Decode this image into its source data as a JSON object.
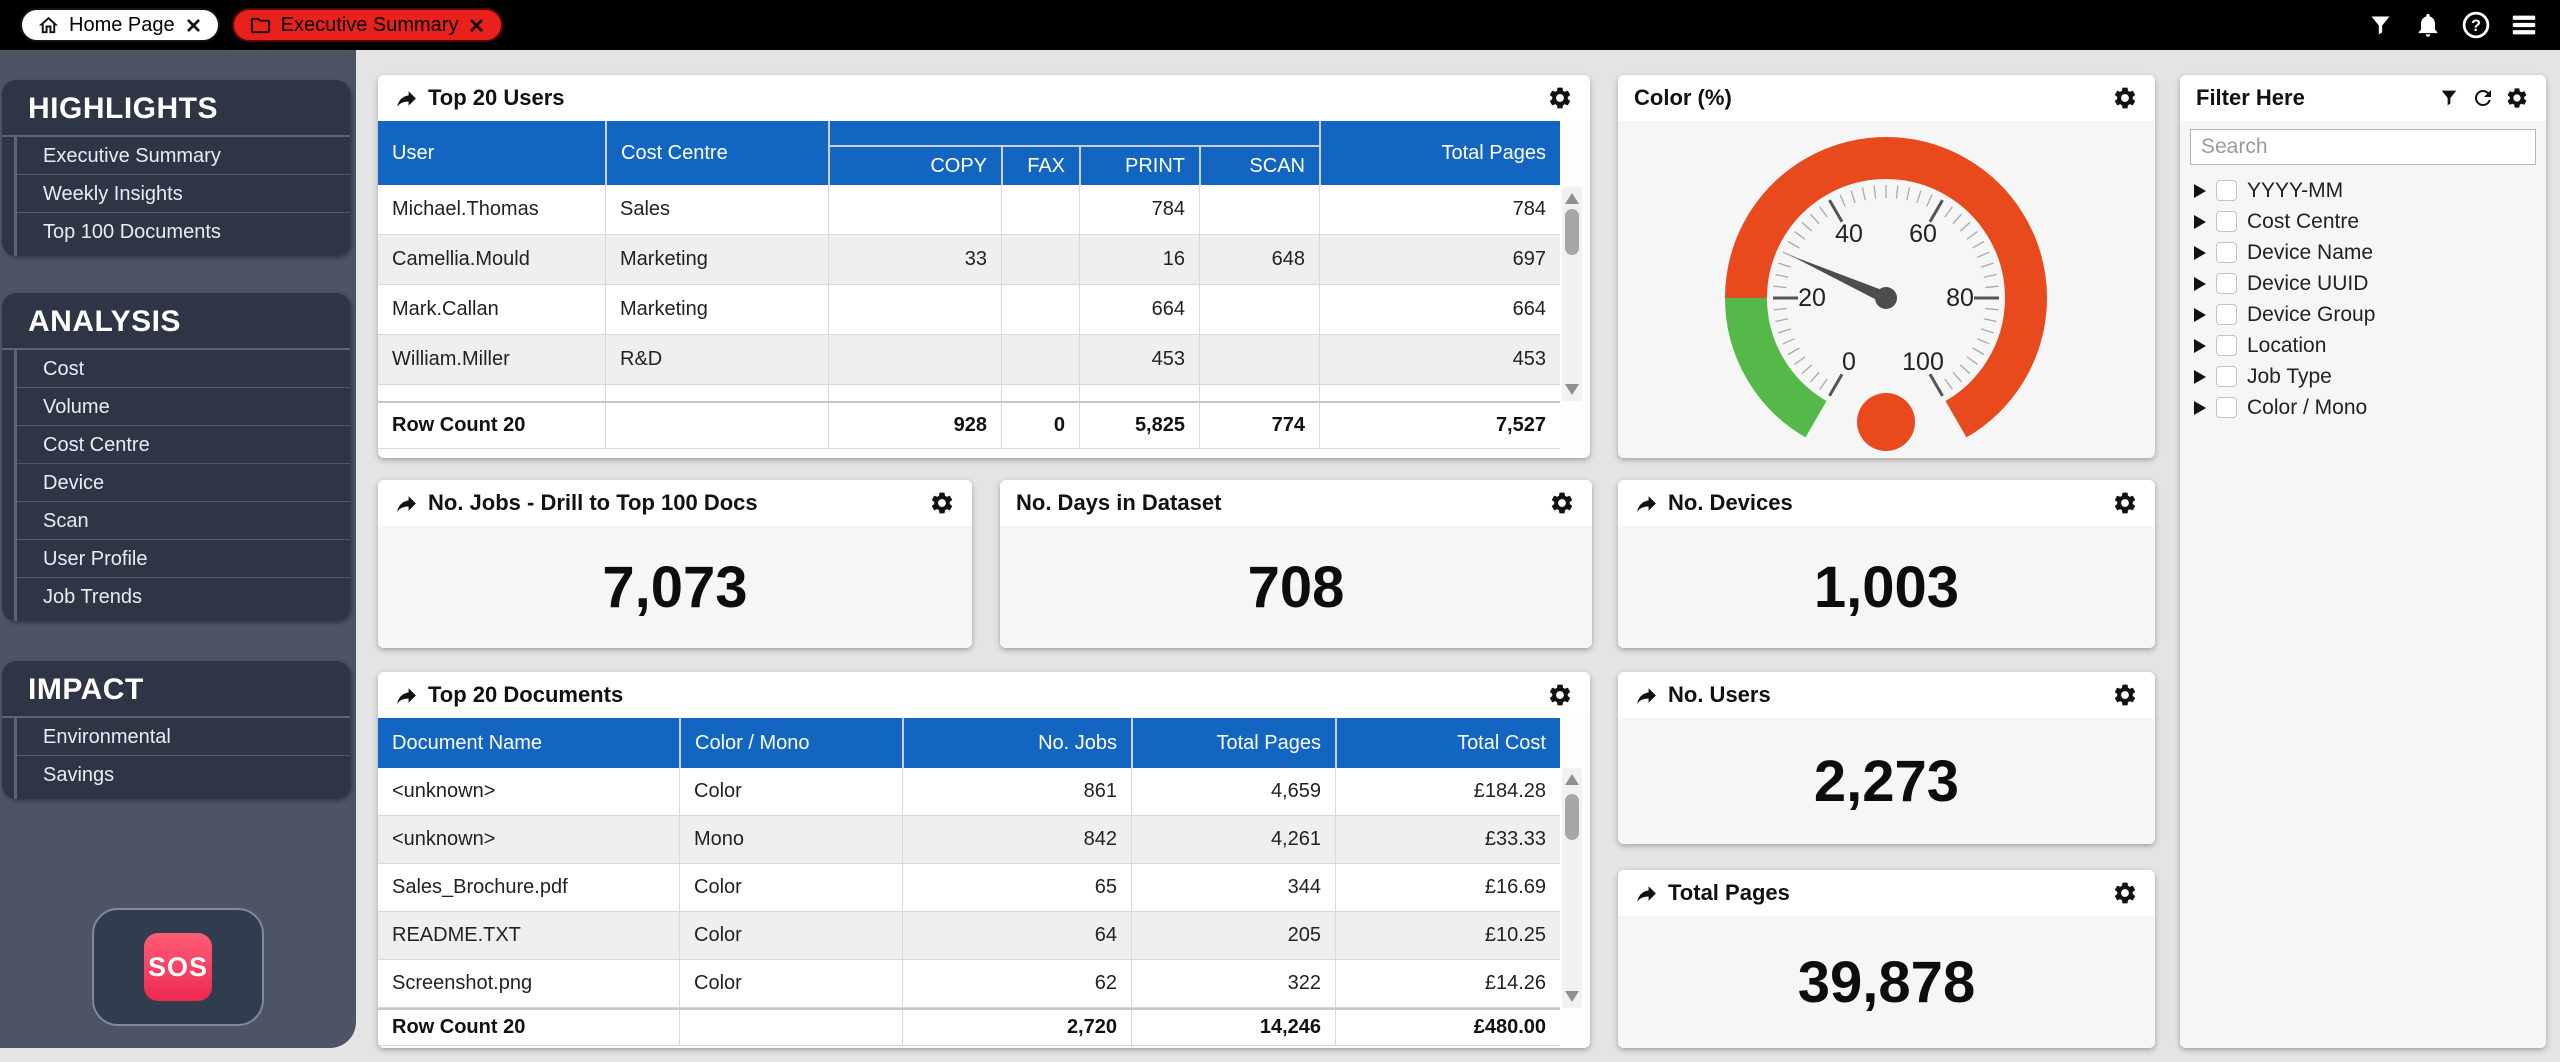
{
  "topbar": {
    "tabs": [
      {
        "label": "Home Page"
      },
      {
        "label": "Executive Summary"
      }
    ],
    "icons": [
      "filter",
      "notifications",
      "help",
      "menu"
    ]
  },
  "sidebar": {
    "sections": [
      {
        "title": "HIGHLIGHTS",
        "items": [
          "Executive Summary",
          "Weekly Insights",
          "Top 100 Documents"
        ]
      },
      {
        "title": "ANALYSIS",
        "items": [
          "Cost",
          "Volume",
          "Cost Centre",
          "Device",
          "Scan",
          "User Profile",
          "Job Trends"
        ]
      },
      {
        "title": "IMPACT",
        "items": [
          "Environmental",
          "Savings"
        ]
      }
    ],
    "sos_label": "SOS"
  },
  "top20_users": {
    "title": "Top 20 Users",
    "col_user": "User",
    "col_cost_centre": "Cost Centre",
    "col_copy": "COPY",
    "col_fax": "FAX",
    "col_print": "PRINT",
    "col_scan": "SCAN",
    "col_total": "Total Pages",
    "rows": [
      {
        "user": "Michael.Thomas",
        "cc": "Sales",
        "copy": "",
        "fax": "",
        "print": "784",
        "scan": "",
        "total": "784"
      },
      {
        "user": "Camellia.Mould",
        "cc": "Marketing",
        "copy": "33",
        "fax": "",
        "print": "16",
        "scan": "648",
        "total": "697"
      },
      {
        "user": "Mark.Callan",
        "cc": "Marketing",
        "copy": "",
        "fax": "",
        "print": "664",
        "scan": "",
        "total": "664"
      },
      {
        "user": "William.Miller",
        "cc": "R&D",
        "copy": "",
        "fax": "",
        "print": "453",
        "scan": "",
        "total": "453"
      }
    ],
    "footer": {
      "label": "Row Count 20",
      "copy": "928",
      "fax": "0",
      "print": "5,825",
      "scan": "774",
      "total": "7,527"
    }
  },
  "gauge_panel": {
    "title": "Color (%)"
  },
  "chart_data": {
    "type": "gauge",
    "title": "Color (%)",
    "min": 0,
    "max": 100,
    "value": 28,
    "start_angle": 240,
    "end_angle": -60,
    "major_ticks": [
      0,
      20,
      40,
      60,
      80,
      100
    ],
    "bands": [
      {
        "from": 0,
        "to": 20,
        "color": "#54b948"
      },
      {
        "from": 20,
        "to": 100,
        "color": "#e8491d"
      }
    ],
    "needle_color": "#4d4d4d",
    "center_dot_color": "#e8491d"
  },
  "filter_panel": {
    "title": "Filter Here",
    "search_placeholder": "Search",
    "items": [
      "YYYY-MM",
      "Cost Centre",
      "Device Name",
      "Device UUID",
      "Device Group",
      "Location",
      "Job Type",
      "Color / Mono"
    ]
  },
  "kpis": {
    "jobs": {
      "title": "No. Jobs - Drill to Top 100 Docs",
      "value": "7,073"
    },
    "days": {
      "title": "No. Days in Dataset",
      "value": "708"
    },
    "devices": {
      "title": "No. Devices",
      "value": "1,003"
    },
    "users": {
      "title": "No. Users",
      "value": "2,273"
    },
    "pages": {
      "title": "Total Pages",
      "value": "39,878"
    }
  },
  "top20_documents": {
    "title": "Top 20 Documents",
    "col_doc": "Document Name",
    "col_cm": "Color / Mono",
    "col_jobs": "No. Jobs",
    "col_pages": "Total Pages",
    "col_cost": "Total Cost",
    "rows": [
      {
        "doc": "<unknown>",
        "cm": "Color",
        "jobs": "861",
        "pages": "4,659",
        "cost": "£184.28"
      },
      {
        "doc": "<unknown>",
        "cm": "Mono",
        "jobs": "842",
        "pages": "4,261",
        "cost": "£33.33"
      },
      {
        "doc": "Sales_Brochure.pdf",
        "cm": "Color",
        "jobs": "65",
        "pages": "344",
        "cost": "£16.69"
      },
      {
        "doc": "README.TXT",
        "cm": "Color",
        "jobs": "64",
        "pages": "205",
        "cost": "£10.25"
      },
      {
        "doc": "Screenshot.png",
        "cm": "Color",
        "jobs": "62",
        "pages": "322",
        "cost": "£14.26"
      }
    ],
    "footer": {
      "label": "Row Count 20",
      "jobs": "2,720",
      "pages": "14,246",
      "cost": "£480.00"
    }
  },
  "colors": {
    "table_header_blue": "#1266c2",
    "active_tab_red": "#e8211d",
    "gauge_orange": "#e8491d",
    "gauge_green": "#54b948",
    "sos_pink": "#ee2950",
    "sidebar_bg": "#4d5565",
    "sidebar_card_bg": "#2e3645",
    "page_bg": "#e4e4e4"
  }
}
